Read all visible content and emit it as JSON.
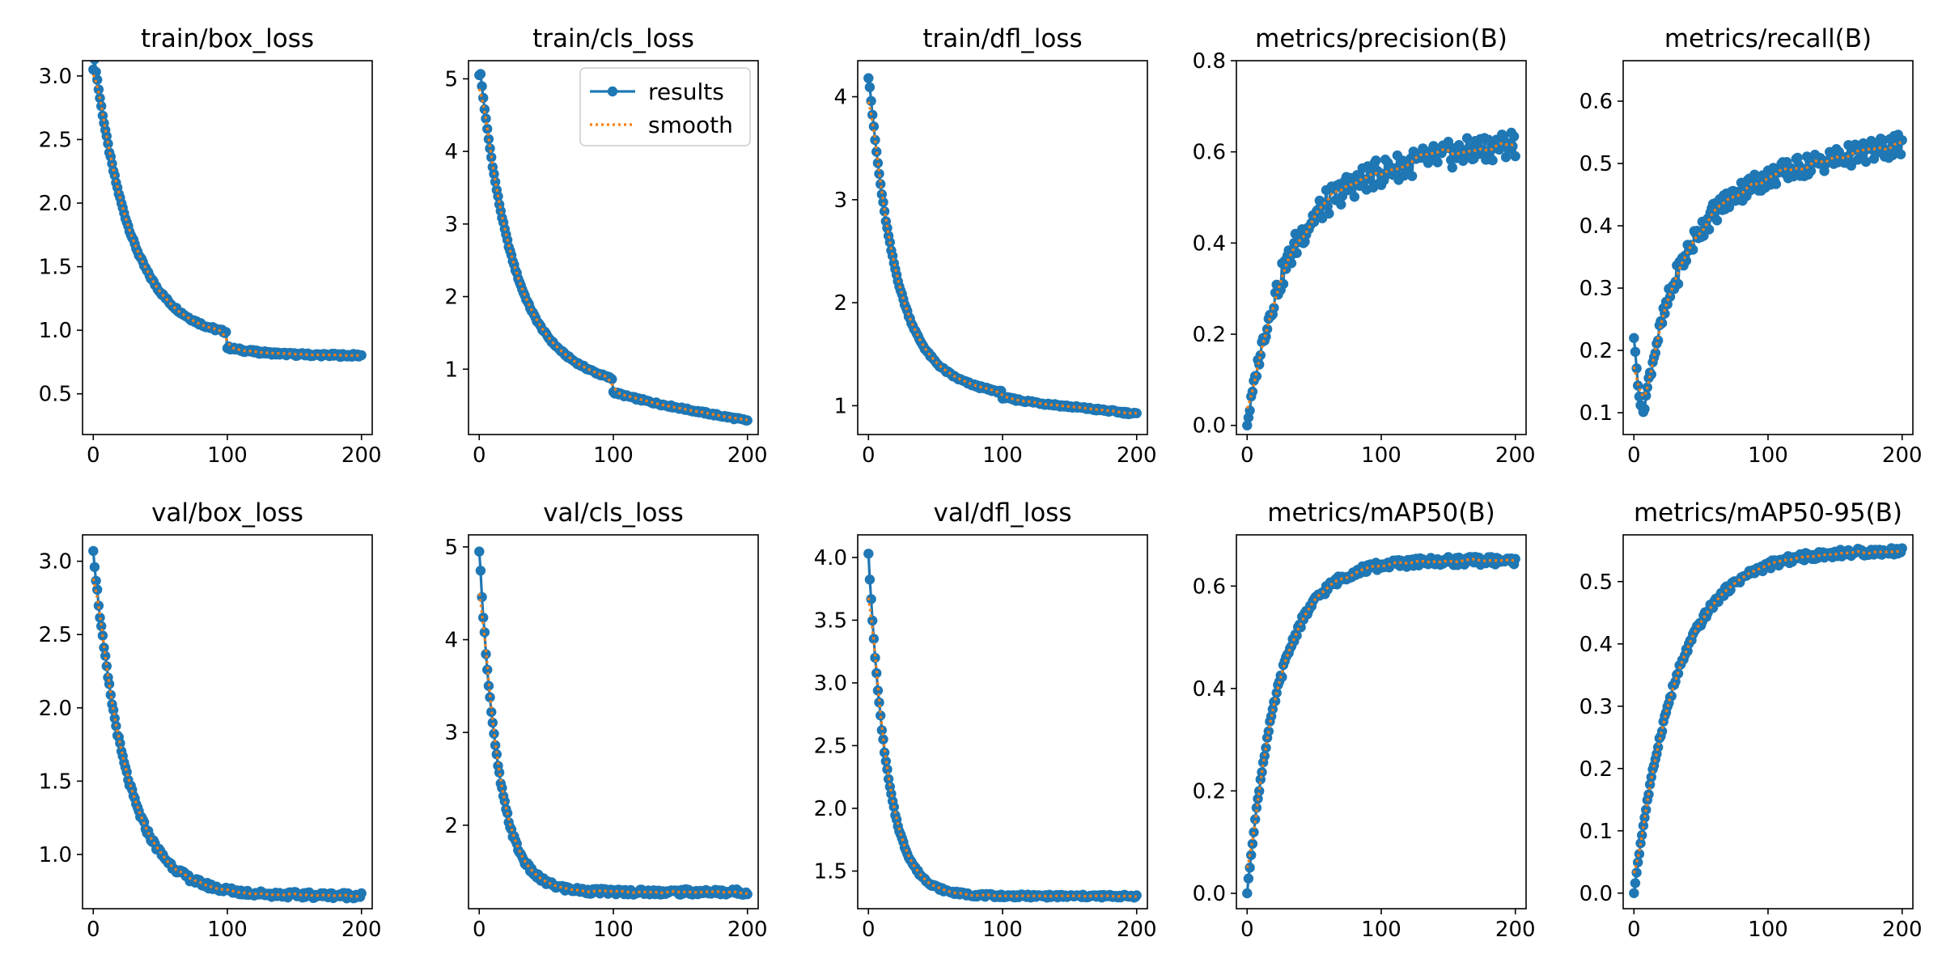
{
  "figure": {
    "colors": {
      "results": "#1f77b4",
      "smooth": "#ff7f0e"
    },
    "legend": {
      "panel": 1,
      "placement": "upper-right",
      "labels": [
        "results",
        "smooth"
      ]
    }
  },
  "chart_data": [
    {
      "type": "line",
      "title": "train/box_loss",
      "xlim": [
        -8,
        208
      ],
      "ylim": [
        0.18,
        3.12
      ],
      "xticks": [
        0,
        100,
        200
      ],
      "yticks": [
        0.5,
        1.0,
        1.5,
        2.0,
        2.5,
        3.0
      ],
      "yfmt": 1,
      "model": {
        "kind": "decay",
        "a": 0.8,
        "b": 2.28,
        "tau": 28,
        "s": 0.0,
        "start": 3.05,
        "jumpAt": 100,
        "jumpSize": 0.12,
        "noise": 0.012
      },
      "series": [
        {
          "name": "results",
          "sampled_values": []
        },
        {
          "name": "smooth",
          "sampled_values": []
        }
      ]
    },
    {
      "type": "line",
      "title": "train/cls_loss",
      "xlim": [
        -8,
        208
      ],
      "ylim": [
        0.1,
        5.25
      ],
      "xticks": [
        0,
        100,
        200
      ],
      "yticks": [
        1,
        2,
        3,
        4,
        5
      ],
      "yfmt": 0,
      "model": {
        "kind": "decay",
        "a": 0.95,
        "b": 4.1,
        "tau": 24,
        "s": 0.0033,
        "start": 5.05,
        "jumpAt": 100,
        "jumpSize": 0.18,
        "noise": 0.015
      },
      "series": [
        {
          "name": "results",
          "sampled_values": []
        },
        {
          "name": "smooth",
          "sampled_values": []
        }
      ]
    },
    {
      "type": "line",
      "title": "train/dfl_loss",
      "xlim": [
        -8,
        208
      ],
      "ylim": [
        0.72,
        4.35
      ],
      "xticks": [
        0,
        100,
        200
      ],
      "yticks": [
        1,
        2,
        3,
        4
      ],
      "yfmt": 0,
      "model": {
        "kind": "decay",
        "a": 1.2,
        "b": 3.0,
        "tau": 20,
        "s": 0.0014,
        "start": 4.18,
        "jumpAt": 100,
        "jumpSize": 0.05,
        "noise": 0.012
      },
      "series": [
        {
          "name": "results",
          "sampled_values": []
        },
        {
          "name": "smooth",
          "sampled_values": []
        }
      ]
    },
    {
      "type": "line",
      "title": "metrics/precision(B)",
      "xlim": [
        -8,
        208
      ],
      "ylim": [
        -0.02,
        0.8
      ],
      "xticks": [
        0,
        100,
        200
      ],
      "yticks": [
        0.0,
        0.2,
        0.4,
        0.6,
        0.8
      ],
      "yfmt": 1,
      "model": {
        "kind": "grow",
        "a": 0.65,
        "b": 0.52,
        "tau": 28,
        "s": 0.0005,
        "start": 0.0,
        "noise": 0.03
      },
      "series": [
        {
          "name": "results",
          "sampled_values": []
        },
        {
          "name": "smooth",
          "sampled_values": []
        }
      ]
    },
    {
      "type": "line",
      "title": "metrics/recall(B)",
      "xlim": [
        -8,
        208
      ],
      "ylim": [
        0.065,
        0.665
      ],
      "xticks": [
        0,
        100,
        200
      ],
      "yticks": [
        0.1,
        0.2,
        0.3,
        0.4,
        0.5,
        0.6
      ],
      "yfmt": 1,
      "model": {
        "kind": "grow",
        "a": 0.53,
        "b": 0.45,
        "tau": 28,
        "s": 0.0004,
        "start": 0.22,
        "noise": 0.018
      },
      "series": [
        {
          "name": "results",
          "sampled_values": []
        },
        {
          "name": "smooth",
          "sampled_values": []
        }
      ]
    },
    {
      "type": "line",
      "title": "val/box_loss",
      "xlim": [
        -8,
        208
      ],
      "ylim": [
        0.63,
        3.18
      ],
      "xticks": [
        0,
        100,
        200
      ],
      "yticks": [
        1.0,
        1.5,
        2.0,
        2.5,
        3.0
      ],
      "yfmt": 1,
      "model": {
        "kind": "decay",
        "a": 0.72,
        "b": 2.35,
        "tau": 24,
        "s": 0.0,
        "start": 3.07,
        "noise": 0.02
      },
      "series": [
        {
          "name": "results",
          "sampled_values": []
        },
        {
          "name": "smooth",
          "sampled_values": []
        }
      ]
    },
    {
      "type": "line",
      "title": "val/cls_loss",
      "xlim": [
        -8,
        208
      ],
      "ylim": [
        1.1,
        5.13
      ],
      "xticks": [
        0,
        100,
        200
      ],
      "yticks": [
        2,
        3,
        4,
        5
      ],
      "yfmt": 0,
      "model": {
        "kind": "decay",
        "a": 1.28,
        "b": 3.7,
        "tau": 14,
        "s": 0.0,
        "start": 4.95,
        "noise": 0.03
      },
      "series": [
        {
          "name": "results",
          "sampled_values": []
        },
        {
          "name": "smooth",
          "sampled_values": []
        }
      ]
    },
    {
      "type": "line",
      "title": "val/dfl_loss",
      "xlim": [
        -8,
        208
      ],
      "ylim": [
        1.2,
        4.18
      ],
      "xticks": [
        0,
        100,
        200
      ],
      "yticks": [
        1.5,
        2.0,
        2.5,
        3.0,
        3.5,
        4.0
      ],
      "yfmt": 1,
      "model": {
        "kind": "decay",
        "a": 1.3,
        "b": 2.72,
        "tau": 14,
        "s": 0.0,
        "start": 4.03,
        "noise": 0.012
      },
      "series": [
        {
          "name": "results",
          "sampled_values": []
        },
        {
          "name": "smooth",
          "sampled_values": []
        }
      ]
    },
    {
      "type": "line",
      "title": "metrics/mAP50(B)",
      "xlim": [
        -8,
        208
      ],
      "ylim": [
        -0.03,
        0.7
      ],
      "xticks": [
        0,
        100,
        200
      ],
      "yticks": [
        0.0,
        0.2,
        0.4,
        0.6
      ],
      "yfmt": 1,
      "model": {
        "kind": "grow",
        "a": 0.65,
        "b": 0.65,
        "tau": 24,
        "s": 0.0,
        "start": 0.0,
        "noise": 0.008
      },
      "series": [
        {
          "name": "results",
          "sampled_values": []
        },
        {
          "name": "smooth",
          "sampled_values": []
        }
      ]
    },
    {
      "type": "line",
      "title": "metrics/mAP50-95(B)",
      "xlim": [
        -8,
        208
      ],
      "ylim": [
        -0.025,
        0.575
      ],
      "xticks": [
        0,
        100,
        200
      ],
      "yticks": [
        0.0,
        0.1,
        0.2,
        0.3,
        0.4,
        0.5
      ],
      "yfmt": 1,
      "model": {
        "kind": "grow",
        "a": 0.545,
        "b": 0.55,
        "tau": 32,
        "s": 0.0,
        "start": 0.0,
        "noise": 0.006
      },
      "series": [
        {
          "name": "results",
          "sampled_values": []
        },
        {
          "name": "smooth",
          "sampled_values": []
        }
      ]
    }
  ]
}
